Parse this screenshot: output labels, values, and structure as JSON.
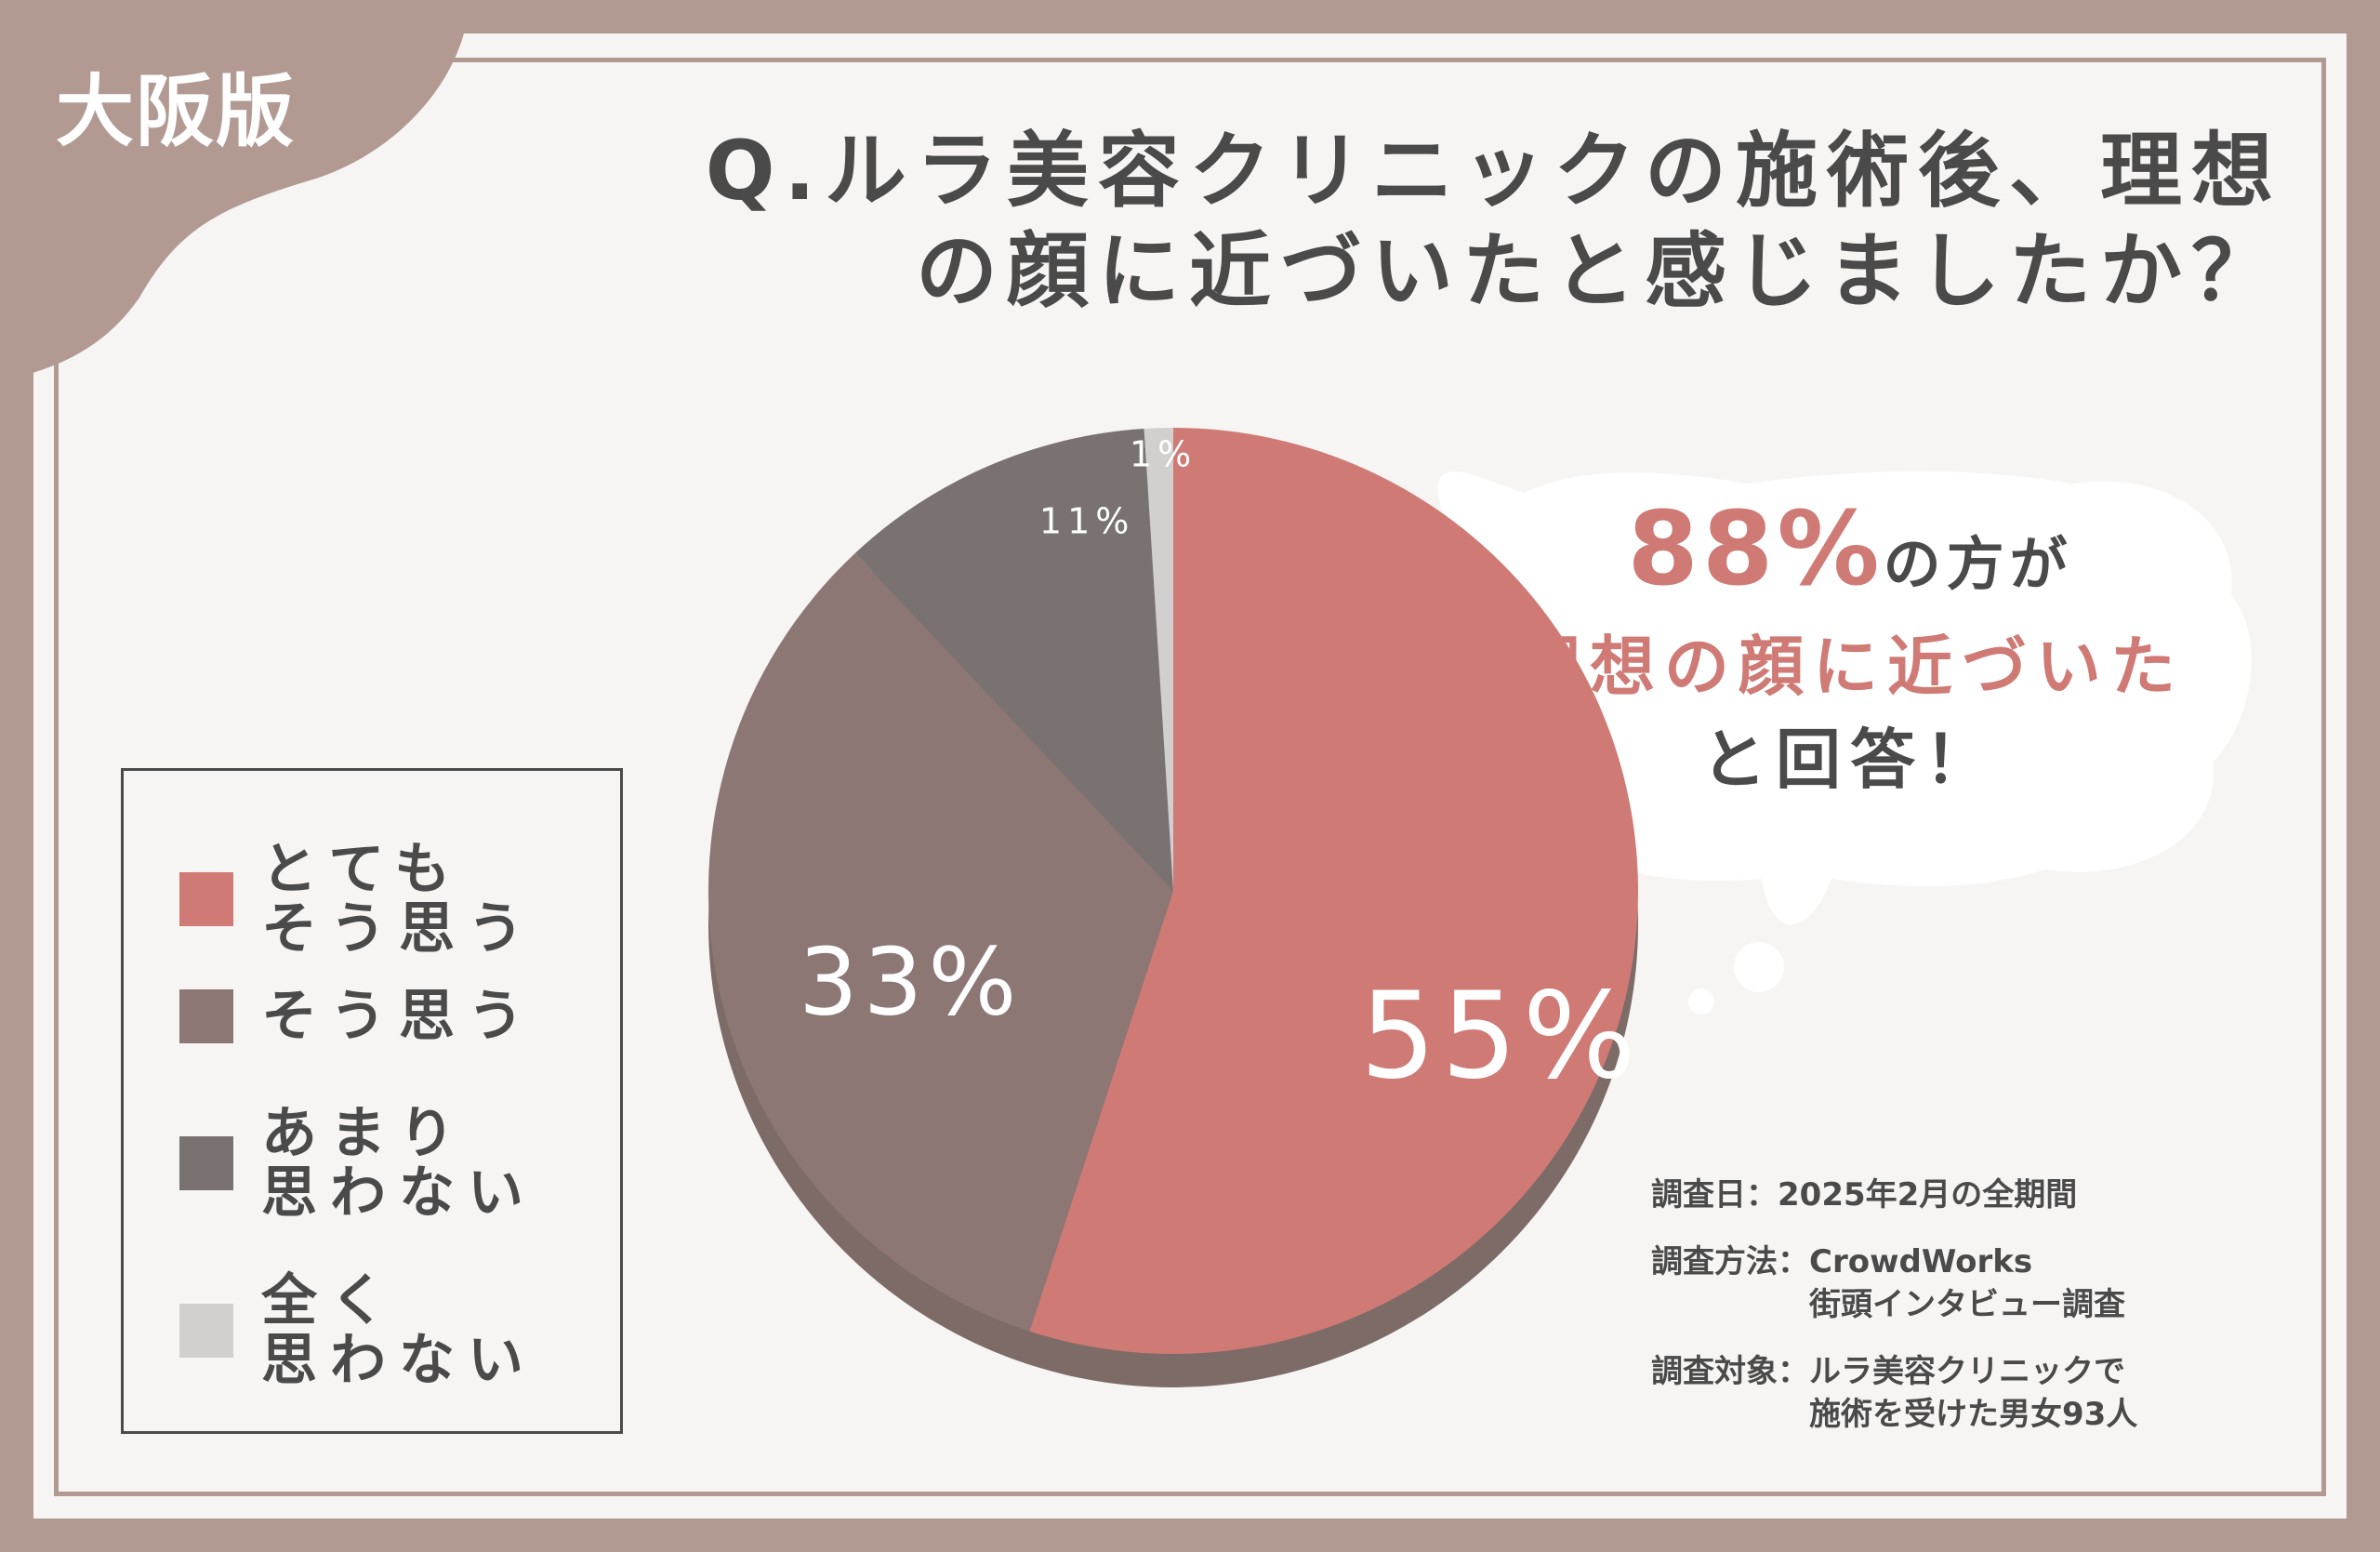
{
  "region_tag": "大阪版",
  "title": {
    "line1": "Q.ルラ美容クリニックの施術後、理想",
    "line2": "の顔に近づいたと感じましたか？"
  },
  "colors": {
    "frame": "#b29a92",
    "pink": "#cf7a75",
    "mauve": "#8c7775",
    "dark_gray": "#797270",
    "light_gray": "#d2d0cf",
    "text": "#4a4a4a"
  },
  "chart_data": {
    "type": "pie",
    "title": "",
    "slices": [
      {
        "label": "とても\nそう思う",
        "value": 55,
        "display": "55%",
        "color": "#cf7a75"
      },
      {
        "label": "そう思う",
        "value": 33,
        "display": "33%",
        "color": "#8c7775"
      },
      {
        "label": "あまり\n思わない",
        "value": 11,
        "display": "11%",
        "color": "#797270"
      },
      {
        "label": "全く\n思わない",
        "value": 1,
        "display": "1%",
        "color": "#d2d0cf"
      }
    ],
    "legend_position": "left"
  },
  "callout": {
    "percent": "88%",
    "line1_rest": "の方が",
    "line2": "理想の顔に近づいた",
    "line3": "と回答！"
  },
  "survey": {
    "date_key": "調査日：",
    "date_val": "2025年2月の全期間",
    "method_key": "調査方法：",
    "method_val": "CrowdWorks\n街頭インタビュー調査",
    "target_key": "調査対象：",
    "target_val": "ルラ美容クリニックで\n施術を受けた男女93人"
  }
}
